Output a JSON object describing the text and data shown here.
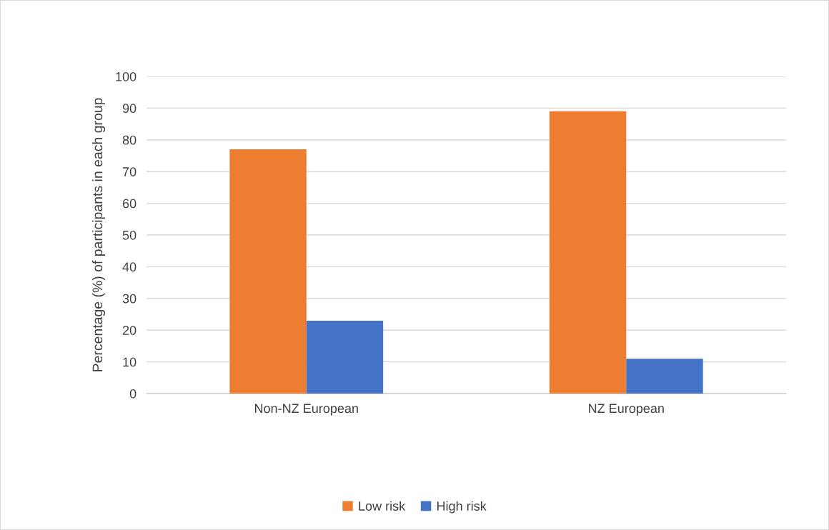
{
  "chart_data": {
    "type": "bar",
    "ylabel": "Percentage (%) of participants in each group",
    "categories": [
      "Non-NZ European",
      "NZ European"
    ],
    "series": [
      {
        "name": "Low risk",
        "color": "#ed7d31",
        "values": [
          77,
          89
        ]
      },
      {
        "name": "High risk",
        "color": "#4472c4",
        "values": [
          23,
          11
        ]
      }
    ],
    "ylim": [
      0,
      100
    ],
    "yticks": [
      0,
      10,
      20,
      30,
      40,
      50,
      60,
      70,
      80,
      90,
      100
    ],
    "grid": "y",
    "legend": "bottom"
  }
}
